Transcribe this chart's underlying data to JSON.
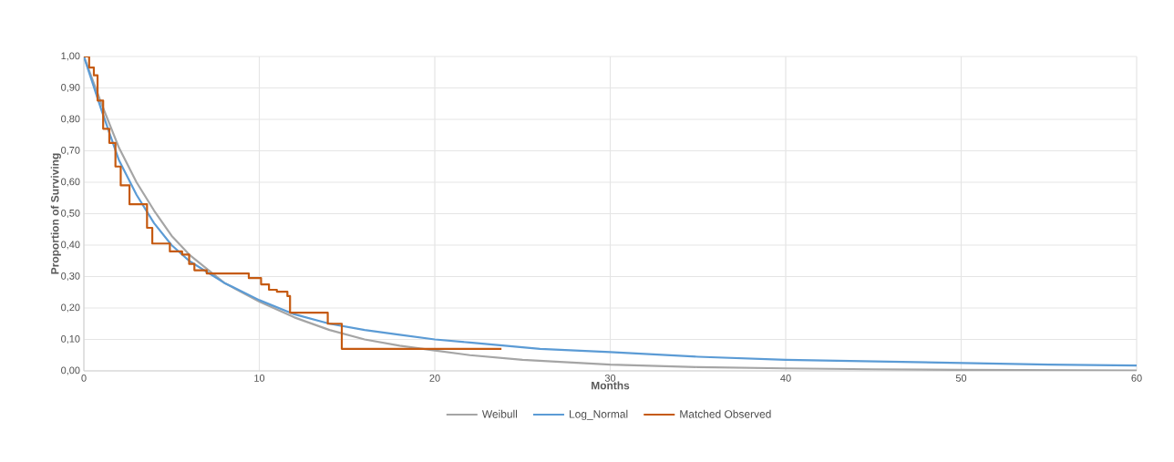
{
  "chart_data": {
    "type": "line",
    "xlabel": "Months",
    "ylabel": "Proportion of Surviving",
    "xlim": [
      0,
      60
    ],
    "xticks": [
      0,
      10,
      20,
      30,
      40,
      50,
      60
    ],
    "ylim": [
      0,
      1
    ],
    "yticks": [
      {
        "value": 0,
        "label": "0,00"
      },
      {
        "value": 0.1,
        "label": "0,10"
      },
      {
        "value": 0.2,
        "label": "0,20"
      },
      {
        "value": 0.3,
        "label": "0,30"
      },
      {
        "value": 0.4,
        "label": "0,40"
      },
      {
        "value": 0.5,
        "label": "0,50"
      },
      {
        "value": 0.6,
        "label": "0,60"
      },
      {
        "value": 0.7,
        "label": "0,70"
      },
      {
        "value": 0.8,
        "label": "0,80"
      },
      {
        "value": 0.9,
        "label": "0,90"
      },
      {
        "value": 1,
        "label": "1,00"
      }
    ],
    "grid": true,
    "legend": "bottom",
    "series": [
      {
        "name": "Weibull",
        "color": "#a5a5a5",
        "x": [
          0,
          1,
          2,
          3,
          4,
          5,
          6,
          8,
          10,
          12,
          14,
          16,
          18,
          20,
          22,
          25,
          30,
          35,
          40,
          45,
          50,
          60
        ],
        "values": [
          1.0,
          0.85,
          0.71,
          0.6,
          0.51,
          0.43,
          0.37,
          0.28,
          0.22,
          0.17,
          0.13,
          0.1,
          0.08,
          0.065,
          0.05,
          0.035,
          0.02,
          0.012,
          0.008,
          0.005,
          0.003,
          0.001
        ]
      },
      {
        "name": "Log_Normal",
        "color": "#5b9bd5",
        "x": [
          0,
          1,
          2,
          3,
          4,
          5,
          6,
          8,
          10,
          12,
          14,
          16,
          18,
          20,
          22,
          24,
          26,
          30,
          35,
          40,
          45,
          50,
          55,
          60
        ],
        "values": [
          1.0,
          0.83,
          0.67,
          0.56,
          0.47,
          0.4,
          0.35,
          0.28,
          0.225,
          0.18,
          0.15,
          0.13,
          0.115,
          0.1,
          0.09,
          0.08,
          0.07,
          0.06,
          0.045,
          0.035,
          0.03,
          0.025,
          0.02,
          0.017
        ]
      },
      {
        "name": "Matched Observed",
        "type": "step",
        "color": "#c55a11",
        "x": [
          0,
          0.3,
          0.57,
          0.78,
          1.1,
          1.45,
          1.8,
          2.1,
          2.6,
          3.6,
          3.9,
          4.9,
          5.6,
          6.0,
          6.3,
          7.0,
          9.4,
          10.1,
          10.55,
          11.0,
          11.6,
          11.75,
          13.9,
          14.7,
          23.8
        ],
        "values": [
          1.0,
          0.965,
          0.94,
          0.86,
          0.77,
          0.725,
          0.65,
          0.59,
          0.53,
          0.455,
          0.405,
          0.38,
          0.37,
          0.34,
          0.32,
          0.31,
          0.295,
          0.275,
          0.258,
          0.252,
          0.238,
          0.185,
          0.15,
          0.07,
          0.07
        ]
      }
    ]
  }
}
